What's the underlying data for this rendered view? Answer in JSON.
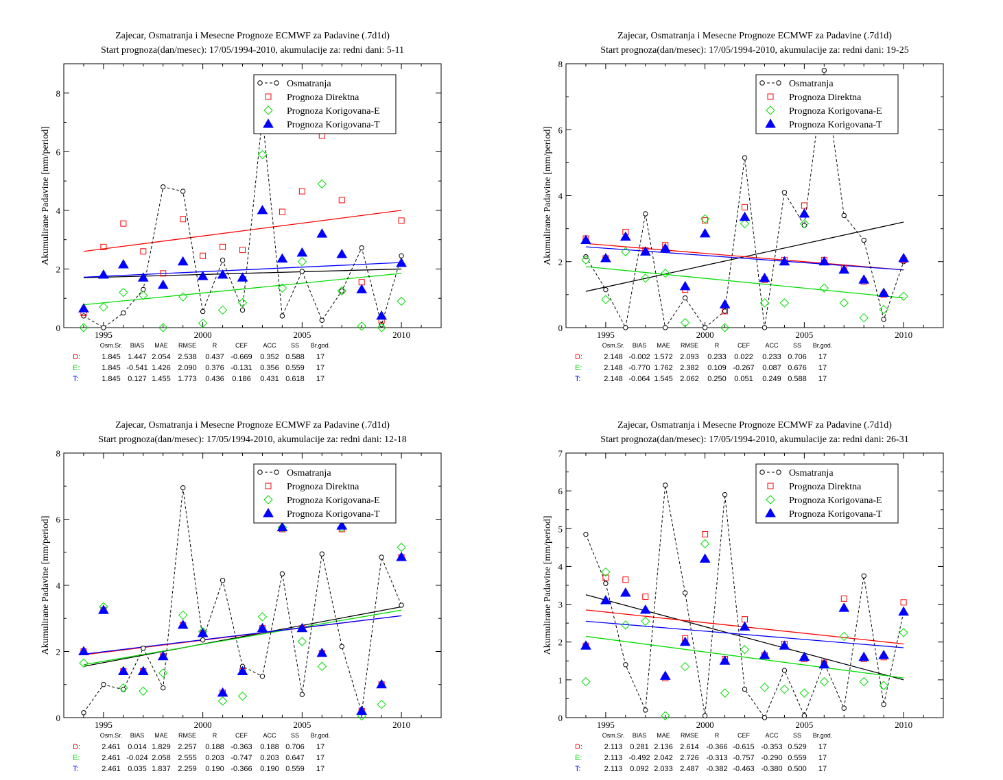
{
  "colors": {
    "obs": "#000000",
    "direct": "#ff0000",
    "corr_e": "#00dd00",
    "corr_t": "#0000ff"
  },
  "stats_header": [
    "Osm.Sr.",
    "BIAS",
    "MAE",
    "RMSE",
    "R",
    "CEF",
    "ACC",
    "SS",
    "Br.god."
  ],
  "chart_data": [
    {
      "type": "scatter",
      "title": "Zajecar, Osmatranja i Mesecne Prognoze ECMWF za Padavine (.7d1d)",
      "subtitle": "Start prognoza(dan/mesec): 17/05/1994-2010, akumulacije za: redni dani: 5-11",
      "ylabel": "Akumulirane Padavine [mm/period]",
      "xlim": [
        1993,
        2012
      ],
      "ylim": [
        0,
        9
      ],
      "xticks": [
        1995,
        2000,
        2005,
        2010
      ],
      "yticks": [
        0,
        2,
        4,
        6,
        8
      ],
      "legend": "top-right",
      "x": [
        1994,
        1995,
        1996,
        1997,
        1998,
        1999,
        2000,
        2001,
        2002,
        2003,
        2004,
        2005,
        2006,
        2007,
        2008,
        2009,
        2010
      ],
      "series": [
        {
          "name": "Osmatranja",
          "values": [
            0.4,
            0.0,
            0.5,
            1.3,
            4.8,
            4.65,
            0.55,
            2.3,
            0.6,
            7.2,
            0.4,
            1.92,
            0.25,
            1.25,
            2.72,
            0.1,
            2.45
          ]
        },
        {
          "name": "Prognoza Direktna",
          "values": [
            0.5,
            2.75,
            3.55,
            2.6,
            1.85,
            3.7,
            2.45,
            2.75,
            2.65,
            7.05,
            3.95,
            4.65,
            6.55,
            4.35,
            1.55,
            0.25,
            3.65
          ]
        },
        {
          "name": "Prognoza Korigovana-E",
          "values": [
            0.0,
            0.7,
            1.2,
            1.1,
            0.0,
            1.05,
            0.15,
            0.6,
            0.85,
            5.9,
            1.35,
            2.25,
            4.9,
            1.25,
            0.05,
            0.0,
            0.9
          ]
        },
        {
          "name": "Prognoza Korigovana-T",
          "values": [
            0.65,
            1.8,
            2.15,
            1.7,
            1.45,
            2.25,
            1.75,
            1.8,
            1.7,
            4.0,
            2.35,
            2.55,
            3.2,
            2.5,
            1.3,
            0.4,
            2.2
          ]
        }
      ],
      "trends": {
        "obs": [
          1.7,
          2.0
        ],
        "direct": [
          2.6,
          4.0
        ],
        "corr_e": [
          0.78,
          1.85
        ],
        "corr_t": [
          1.72,
          2.22
        ]
      },
      "stats": [
        {
          "label": "D:",
          "values": [
            "1.845",
            "1.447",
            "2.054",
            "2.538",
            "0.437",
            "-0.669",
            "0.352",
            "0.588",
            "17"
          ]
        },
        {
          "label": "E:",
          "values": [
            "1.845",
            "-0.541",
            "1.426",
            "2.090",
            "0.376",
            "-0.131",
            "0.356",
            "0.559",
            "17"
          ]
        },
        {
          "label": "T:",
          "values": [
            "1.845",
            "0.127",
            "1.455",
            "1.773",
            "0.436",
            "0.186",
            "0.431",
            "0.618",
            "17"
          ]
        }
      ]
    },
    {
      "type": "scatter",
      "title": "Zajecar, Osmatranja i Mesecne Prognoze ECMWF za Padavine (.7d1d)",
      "subtitle": "Start prognoza(dan/mesec): 17/05/1994-2010, akumulacije za: redni dani: 19-25",
      "ylabel": "Akumulirane Padavine [mm/period]",
      "xlim": [
        1993,
        2012
      ],
      "ylim": [
        0,
        8
      ],
      "xticks": [
        1995,
        2000,
        2005,
        2010
      ],
      "yticks": [
        0,
        2,
        4,
        6,
        8
      ],
      "legend": "top-right",
      "x": [
        1994,
        1995,
        1996,
        1997,
        1998,
        1999,
        2000,
        2001,
        2002,
        2003,
        2004,
        2005,
        2006,
        2007,
        2008,
        2009,
        2010
      ],
      "series": [
        {
          "name": "Osmatranja",
          "values": [
            2.15,
            1.15,
            0.0,
            3.45,
            0.0,
            0.9,
            0.0,
            0.5,
            5.15,
            0.0,
            4.1,
            3.1,
            7.8,
            3.4,
            2.65,
            0.25,
            2.0
          ]
        },
        {
          "name": "Prognoza Direktna",
          "values": [
            2.7,
            2.1,
            2.9,
            2.35,
            2.5,
            1.15,
            3.25,
            0.5,
            3.65,
            1.45,
            2.05,
            3.7,
            2.05,
            1.8,
            1.4,
            1.0,
            2.05
          ]
        },
        {
          "name": "Prognoza Korigovana-E",
          "values": [
            2.05,
            0.85,
            2.3,
            1.5,
            1.65,
            0.15,
            3.3,
            0.0,
            3.15,
            0.75,
            0.75,
            3.15,
            1.2,
            0.75,
            0.3,
            0.55,
            0.95
          ]
        },
        {
          "name": "Prognoza Korigovana-T",
          "values": [
            2.65,
            2.1,
            2.75,
            2.3,
            2.4,
            1.25,
            2.85,
            0.7,
            3.35,
            1.5,
            2.0,
            3.45,
            2.0,
            1.75,
            1.45,
            1.05,
            2.1
          ]
        }
      ],
      "trends": {
        "obs": [
          1.1,
          3.2
        ],
        "direct": [
          2.55,
          1.75
        ],
        "corr_e": [
          1.85,
          0.9
        ],
        "corr_t": [
          2.45,
          1.75
        ]
      },
      "stats": [
        {
          "label": "D:",
          "values": [
            "2.148",
            "-0.002",
            "1.572",
            "2.093",
            "0.233",
            "0.022",
            "0.233",
            "0.706",
            "17"
          ]
        },
        {
          "label": "E:",
          "values": [
            "2.148",
            "-0.770",
            "1.762",
            "2.382",
            "0.109",
            "-0.267",
            "0.087",
            "0.676",
            "17"
          ]
        },
        {
          "label": "T:",
          "values": [
            "2.148",
            "-0.064",
            "1.545",
            "2.062",
            "0.250",
            "0.051",
            "0.249",
            "0.588",
            "17"
          ]
        }
      ]
    },
    {
      "type": "scatter",
      "title": "Zajecar, Osmatranja i Mesecne Prognoze ECMWF za Padavine (.7d1d)",
      "subtitle": "Start prognoza(dan/mesec): 17/05/1994-2010, akumulacije za: redni dani: 12-18",
      "ylabel": "Akumulirane Padavine [mm/period]",
      "xlim": [
        1993,
        2012
      ],
      "ylim": [
        0,
        8
      ],
      "xticks": [
        1995,
        2000,
        2005,
        2010
      ],
      "yticks": [
        0,
        2,
        4,
        6,
        8
      ],
      "legend": "top-right",
      "x": [
        1994,
        1995,
        1996,
        1997,
        1998,
        1999,
        2000,
        2001,
        2002,
        2003,
        2004,
        2005,
        2006,
        2007,
        2008,
        2009,
        2010
      ],
      "series": [
        {
          "name": "Osmatranja",
          "values": [
            0.15,
            1.0,
            0.85,
            2.1,
            0.9,
            6.95,
            2.35,
            4.15,
            1.55,
            1.25,
            4.35,
            0.7,
            4.95,
            2.15,
            0.15,
            4.85,
            3.4
          ]
        },
        {
          "name": "Prognoza Direktna",
          "values": [
            2.0,
            3.25,
            1.4,
            1.4,
            1.85,
            2.8,
            2.55,
            0.75,
            1.4,
            2.7,
            5.7,
            2.7,
            1.95,
            5.7,
            0.2,
            1.0,
            4.85
          ]
        },
        {
          "name": "Prognoza Korigovana-E",
          "values": [
            1.65,
            3.35,
            0.9,
            0.8,
            1.35,
            3.1,
            2.6,
            0.5,
            0.65,
            3.05,
            5.75,
            2.3,
            1.55,
            5.75,
            0.05,
            0.4,
            5.15
          ]
        },
        {
          "name": "Prognoza Korigovana-T",
          "values": [
            2.0,
            3.25,
            1.4,
            1.4,
            1.85,
            2.8,
            2.55,
            0.75,
            1.4,
            2.7,
            5.75,
            2.7,
            1.95,
            5.8,
            0.2,
            1.0,
            4.85
          ]
        }
      ],
      "trends": {
        "obs": [
          1.55,
          3.35
        ],
        "direct": [
          1.9,
          3.08
        ],
        "corr_e": [
          1.6,
          3.25
        ],
        "corr_t": [
          1.92,
          3.08
        ]
      },
      "stats": [
        {
          "label": "D:",
          "values": [
            "2.461",
            "0.014",
            "1.829",
            "2.257",
            "0.188",
            "-0.363",
            "0.188",
            "0.706",
            "17"
          ]
        },
        {
          "label": "E:",
          "values": [
            "2.461",
            "-0.024",
            "2.058",
            "2.555",
            "0.203",
            "-0.747",
            "0.203",
            "0.647",
            "17"
          ]
        },
        {
          "label": "T:",
          "values": [
            "2.461",
            "0.035",
            "1.837",
            "2.259",
            "0.190",
            "-0.366",
            "0.190",
            "0.559",
            "17"
          ]
        }
      ]
    },
    {
      "type": "scatter",
      "title": "Zajecar, Osmatranja i Mesecne Prognoze ECMWF za Padavine (.7d1d)",
      "subtitle": "Start prognoza(dan/mesec): 17/05/1994-2010, akumulacije za: redni dani: 26-31",
      "ylabel": "Akumulirane Padavine [mm/period]",
      "xlim": [
        1993,
        2012
      ],
      "ylim": [
        0,
        7
      ],
      "xticks": [
        1995,
        2000,
        2005,
        2010
      ],
      "yticks": [
        0,
        1,
        2,
        3,
        4,
        5,
        6,
        7
      ],
      "legend": "top-right",
      "x": [
        1994,
        1995,
        1996,
        1997,
        1998,
        1999,
        2000,
        2001,
        2002,
        2003,
        2004,
        2005,
        2006,
        2007,
        2008,
        2009,
        2010
      ],
      "series": [
        {
          "name": "Osmatranja",
          "values": [
            4.85,
            3.55,
            1.4,
            0.2,
            6.15,
            3.3,
            0.05,
            5.9,
            0.75,
            0.0,
            1.25,
            0.05,
            1.45,
            0.25,
            3.75,
            0.35,
            2.8
          ]
        },
        {
          "name": "Prognoza Direktna",
          "values": [
            1.9,
            3.7,
            3.65,
            3.2,
            1.05,
            2.1,
            4.85,
            1.55,
            2.6,
            1.65,
            1.95,
            1.55,
            1.45,
            3.15,
            1.55,
            1.6,
            3.05
          ]
        },
        {
          "name": "Prognoza Korigovana-E",
          "values": [
            0.95,
            3.85,
            2.45,
            2.55,
            0.05,
            1.35,
            4.6,
            0.65,
            1.8,
            0.8,
            0.75,
            0.65,
            0.95,
            2.15,
            0.95,
            0.85,
            2.25
          ]
        },
        {
          "name": "Prognoza Korigovana-T",
          "values": [
            1.9,
            3.1,
            3.3,
            2.85,
            1.1,
            2.0,
            4.2,
            1.5,
            2.4,
            1.65,
            1.9,
            1.6,
            1.4,
            2.9,
            1.6,
            1.65,
            2.8
          ]
        }
      ],
      "trends": {
        "obs": [
          3.25,
          1.0
        ],
        "direct": [
          2.85,
          1.95
        ],
        "corr_e": [
          2.15,
          1.05
        ],
        "corr_t": [
          2.55,
          1.85
        ]
      },
      "stats": [
        {
          "label": "D:",
          "values": [
            "2.113",
            "0.281",
            "2.136",
            "2.614",
            "-0.366",
            "-0.615",
            "-0.353",
            "0.529",
            "17"
          ]
        },
        {
          "label": "E:",
          "values": [
            "2.113",
            "-0.492",
            "2.042",
            "2.726",
            "-0.313",
            "-0.757",
            "-0.290",
            "0.559",
            "17"
          ]
        },
        {
          "label": "T:",
          "values": [
            "2.113",
            "0.092",
            "2.033",
            "2.487",
            "-0.382",
            "-0.463",
            "-0.380",
            "0.500",
            "17"
          ]
        }
      ]
    }
  ]
}
